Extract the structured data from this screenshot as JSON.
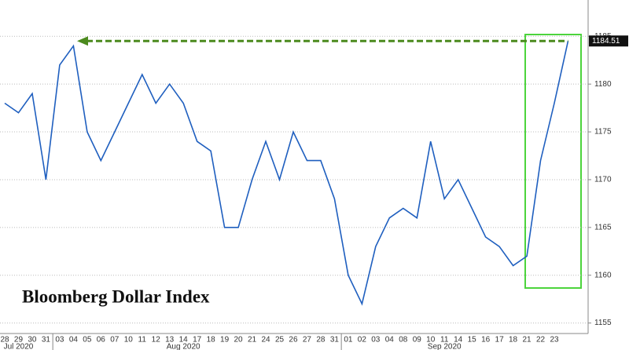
{
  "chart_data": {
    "type": "line",
    "title": "Bloomberg Dollar Index",
    "categories": [
      "28",
      "29",
      "30",
      "31",
      "03",
      "04",
      "05",
      "06",
      "07",
      "10",
      "11",
      "12",
      "13",
      "14",
      "17",
      "18",
      "19",
      "20",
      "21",
      "24",
      "25",
      "26",
      "27",
      "28",
      "31",
      "01",
      "02",
      "03",
      "04",
      "08",
      "09",
      "10",
      "11",
      "14",
      "15",
      "16",
      "17",
      "18",
      "21",
      "22",
      "23",
      null
    ],
    "months": [
      "Jul 2020",
      "Aug 2020",
      "Sep 2020"
    ],
    "series": [
      {
        "name": "Bloomberg Dollar Index",
        "color": "#1f5fbf",
        "values": [
          1178,
          1177,
          1179,
          1170,
          1182,
          1184,
          1175,
          1172,
          1175,
          1178,
          1181,
          1178,
          1180,
          1178,
          1174,
          1173,
          1165,
          1165,
          1170,
          1174,
          1170,
          1175,
          1172,
          1172,
          1168,
          1160,
          1157,
          1163,
          1166,
          1167,
          1166,
          1174,
          1168,
          1170,
          1167,
          1164,
          1163,
          1161,
          1162,
          1172,
          1178,
          1184.51
        ],
        "value_labels": [
          null,
          null,
          null,
          null,
          null,
          null,
          null,
          null,
          null,
          null,
          null,
          null,
          null,
          null,
          null,
          null,
          null,
          null,
          null,
          null,
          null,
          null,
          null,
          null,
          null,
          null,
          null,
          null,
          null,
          null,
          null,
          null,
          null,
          null,
          null,
          null,
          null,
          null,
          null,
          null,
          null,
          "1184.51"
        ]
      }
    ],
    "ylim": [
      1153.9,
      1188.8
    ],
    "yticks": [
      1155,
      1160,
      1165,
      1170,
      1175,
      1180,
      1185
    ],
    "grid": true
  }
}
